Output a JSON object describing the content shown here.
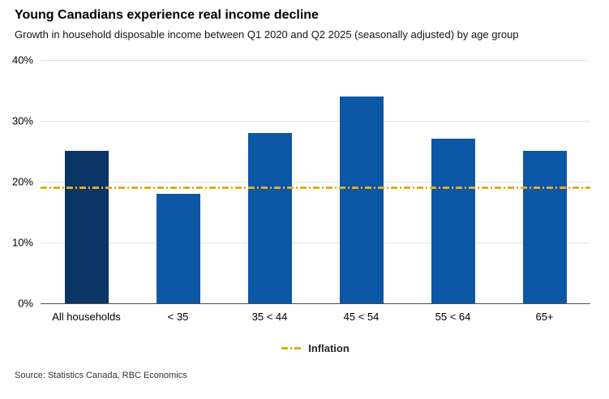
{
  "header": {
    "title": "Young Canadians experience real income decline",
    "subtitle": "Growth in household disposable income between Q1 2020 and Q2 2025 (seasonally adjusted) by age group"
  },
  "chart_data": {
    "type": "bar",
    "title": "Young Canadians experience real income decline",
    "subtitle": "Growth in household disposable income between Q1 2020 and Q2 2025 (seasonally adjusted) by age group",
    "categories": [
      "All households",
      "< 35",
      "35 < 44",
      "45 < 54",
      "55 < 64",
      "65+"
    ],
    "values": [
      25,
      18,
      28,
      34,
      27,
      25
    ],
    "bar_colors": [
      "#0B3564",
      "#0B57A6",
      "#0B57A6",
      "#0B57A6",
      "#0B57A6",
      "#0B57A6"
    ],
    "ylim": [
      0,
      40
    ],
    "yticks": [
      0,
      10,
      20,
      30,
      40
    ],
    "ytick_labels": [
      "0%",
      "10%",
      "20%",
      "30%",
      "40%"
    ],
    "xlabel": "",
    "ylabel": "",
    "grid": true,
    "legend_position": "bottom",
    "reference_line": {
      "label": "Inflation",
      "value": 19,
      "color": "#E0AC1E",
      "style": "dash-dot"
    }
  },
  "footer": {
    "source": "Source: Statistics Canada, RBC Economics"
  }
}
